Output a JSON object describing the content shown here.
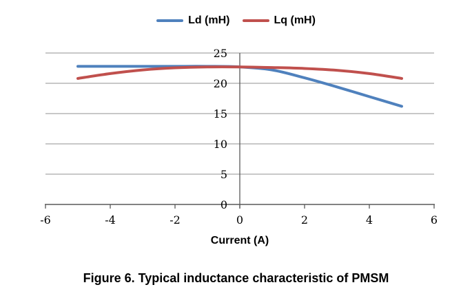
{
  "caption": "Figure 6. Typical inductance characteristic of PMSM",
  "legend": {
    "items": [
      {
        "label": "Ld (mH)",
        "color": "#4F81BD"
      },
      {
        "label": "Lq (mH)",
        "color": "#C0504D"
      }
    ]
  },
  "chart_data": {
    "type": "line",
    "title": "",
    "xlabel": "Current (A)",
    "ylabel": "",
    "x": [
      -5,
      -4,
      -3,
      -2,
      -1,
      0,
      1,
      2,
      3,
      4,
      5
    ],
    "series": [
      {
        "name": "Ld (mH)",
        "color": "#4F81BD",
        "values": [
          22.8,
          22.8,
          22.8,
          22.8,
          22.8,
          22.7,
          22.2,
          20.9,
          19.4,
          17.8,
          16.2
        ]
      },
      {
        "name": "Lq (mH)",
        "color": "#C0504D",
        "values": [
          20.8,
          21.6,
          22.2,
          22.55,
          22.7,
          22.7,
          22.6,
          22.45,
          22.15,
          21.6,
          20.8
        ]
      }
    ],
    "xlim": [
      -6,
      6
    ],
    "ylim": [
      0,
      25
    ],
    "x_ticks": [
      -6,
      -4,
      -2,
      0,
      2,
      4,
      6
    ],
    "y_ticks": [
      0,
      5,
      10,
      15,
      20,
      25
    ],
    "grid": "horizontal",
    "legend_position": "top",
    "line_width": 4,
    "colors": {
      "gridline": "#A6A6A6",
      "axis": "#595959",
      "tick_text": "#000000",
      "background": "#FFFFFF"
    }
  }
}
